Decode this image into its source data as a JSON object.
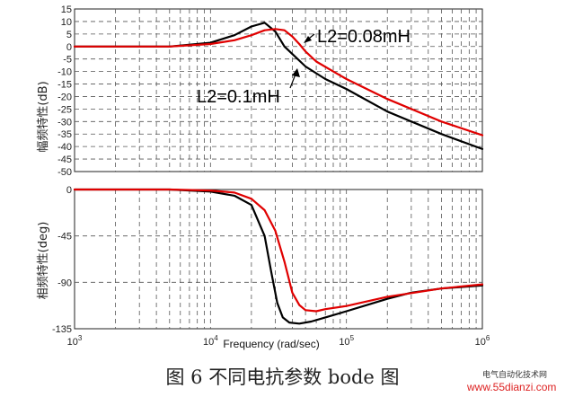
{
  "chart_data": [
    {
      "type": "line",
      "panel": "magnitude",
      "ylabel": "幅频特性(dB)",
      "xscale": "log",
      "xlim": [
        1000,
        1000000
      ],
      "ylim": [
        -50,
        15
      ],
      "yticks": [
        15,
        10,
        5,
        0,
        -5,
        -10,
        -15,
        -20,
        -25,
        -30,
        -35,
        -40,
        -45,
        -50
      ],
      "grid": true,
      "series": [
        {
          "name": "L2=0.1mH",
          "color": "#000000",
          "x": [
            1000,
            5000,
            10000,
            15000,
            20000,
            25000,
            30000,
            35000,
            40000,
            50000,
            70000,
            100000,
            200000,
            500000,
            1000000
          ],
          "y": [
            0,
            0,
            1.5,
            4.5,
            8,
            9.5,
            6,
            0,
            -3,
            -8,
            -13,
            -17,
            -26,
            -35,
            -41
          ]
        },
        {
          "name": "L2=0.08mH",
          "color": "#e00000",
          "x": [
            1000,
            5000,
            10000,
            15000,
            20000,
            25000,
            30000,
            35000,
            40000,
            45000,
            50000,
            60000,
            80000,
            100000,
            200000,
            500000,
            1000000
          ],
          "y": [
            0,
            0,
            1,
            2.5,
            4.5,
            6.5,
            7,
            6.5,
            4,
            1,
            -2,
            -6,
            -10,
            -13,
            -21,
            -30,
            -35.5
          ]
        }
      ],
      "annotations": [
        {
          "text": "L2=0.08mH",
          "x": 50000,
          "y": 4
        },
        {
          "text": "L2=0.1mH",
          "x": 11000,
          "y": -20
        }
      ]
    },
    {
      "type": "line",
      "panel": "phase",
      "ylabel": "相频特性(deg)",
      "xlabel": "Frequency (rad/sec)",
      "xscale": "log",
      "xlim": [
        1000,
        1000000
      ],
      "ylim": [
        -135,
        0
      ],
      "yticks": [
        0,
        -45,
        -90,
        -135
      ],
      "xtick_labels": [
        "10^3",
        "10^4",
        "10^5",
        "10^6"
      ],
      "grid": true,
      "series": [
        {
          "name": "L2=0.1mH",
          "color": "#000000",
          "x": [
            1000,
            5000,
            10000,
            15000,
            20000,
            25000,
            28000,
            31000,
            34000,
            38000,
            45000,
            55000,
            70000,
            100000,
            150000,
            200000,
            300000,
            500000,
            1000000
          ],
          "y": [
            0,
            0,
            -2,
            -6,
            -15,
            -45,
            -80,
            -110,
            -124,
            -129,
            -130,
            -128,
            -124,
            -118,
            -111,
            -106,
            -100,
            -96,
            -93
          ]
        },
        {
          "name": "L2=0.08mH",
          "color": "#e00000",
          "x": [
            1000,
            5000,
            10000,
            15000,
            20000,
            25000,
            30000,
            35000,
            40000,
            45000,
            50000,
            60000,
            70000,
            100000,
            200000,
            500000,
            1000000
          ],
          "y": [
            0,
            0,
            -1,
            -3,
            -9,
            -20,
            -40,
            -70,
            -100,
            -112,
            -117,
            -118,
            -116,
            -113,
            -104,
            -96,
            -92
          ]
        }
      ]
    }
  ],
  "caption": "图 6  不同电抗参数 bode 图",
  "watermark": {
    "line1": "电气自动化技术网",
    "line2": "www.55dianzi.com"
  }
}
